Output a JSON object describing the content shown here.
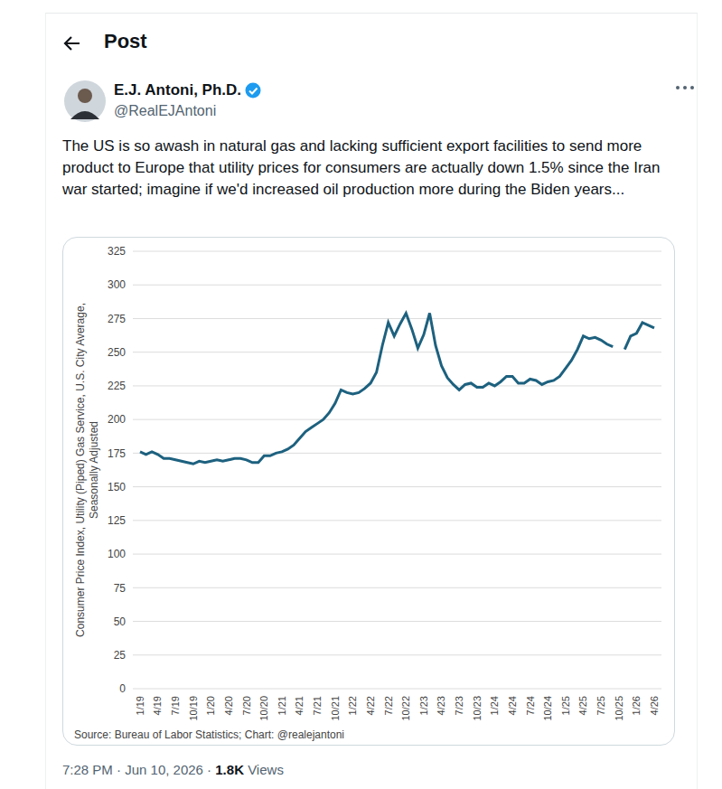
{
  "header": {
    "title": "Post"
  },
  "post": {
    "author": "E.J. Antoni, Ph.D.",
    "handle": "@RealEJAntoni",
    "text": "The US is so awash in natural gas and lacking sufficient export facilities to send more product to Europe that utility prices for consumers are actually down 1.5% since the Iran war started; imagine if we'd increased oil production more during the Biden years...",
    "timestamp": "7:28 PM · Jun 10, 2026 ·",
    "views": "1.8K",
    "views_label": "Views"
  },
  "chart_data": {
    "type": "line",
    "y_label": "Consumer Price Index, Utility (Piped) Gas Service, U.S. City Average, Seasonally Adjusted",
    "source": "Source: Bureau of Labor Statistics; Chart: @realejantoni",
    "categories": [
      "1/19",
      null,
      null,
      "4/19",
      null,
      null,
      "7/19",
      null,
      null,
      "10/19",
      null,
      null,
      "1/20",
      null,
      null,
      "4/20",
      null,
      null,
      "7/20",
      null,
      null,
      "10/20",
      null,
      null,
      "1/21",
      null,
      null,
      "4/21",
      null,
      null,
      "7/21",
      null,
      null,
      "10/21",
      null,
      null,
      "1/22",
      null,
      null,
      "4/22",
      null,
      null,
      "7/22",
      null,
      null,
      "10/22",
      null,
      null,
      "1/23",
      null,
      null,
      "4/23",
      null,
      null,
      "7/23",
      null,
      null,
      "10/23",
      null,
      null,
      "1/24",
      null,
      null,
      "4/24",
      null,
      null,
      "7/24",
      null,
      null,
      "10/24",
      null,
      null,
      "1/25",
      null,
      null,
      "4/25",
      null,
      null,
      "7/25",
      null,
      null,
      "10/25",
      null,
      null,
      "1/26",
      null,
      null,
      "4/26"
    ],
    "values": [
      176,
      174,
      176,
      174,
      171,
      171,
      170,
      169,
      168,
      167,
      169,
      168,
      169,
      170,
      169,
      170,
      171,
      171,
      170,
      168,
      168,
      173,
      173,
      175,
      176,
      178,
      181,
      186,
      191,
      194,
      197,
      200,
      205,
      212,
      222,
      220,
      219,
      220,
      223,
      227,
      235,
      255,
      272,
      262,
      271,
      279,
      267,
      253,
      263,
      279,
      255,
      240,
      231,
      226,
      222,
      226,
      227,
      224,
      224,
      227,
      225,
      228,
      232,
      232,
      227,
      227,
      230,
      229,
      226,
      228,
      229,
      232,
      238,
      244,
      252,
      262,
      260,
      261,
      259,
      256,
      254,
      null,
      252,
      262,
      264,
      272,
      270,
      268
    ],
    "color": "#1d617f",
    "ylim": [
      0,
      325
    ],
    "yticks": [
      0,
      25,
      50,
      75,
      100,
      125,
      150,
      175,
      200,
      225,
      250,
      275,
      300,
      325
    ],
    "grid": true
  }
}
